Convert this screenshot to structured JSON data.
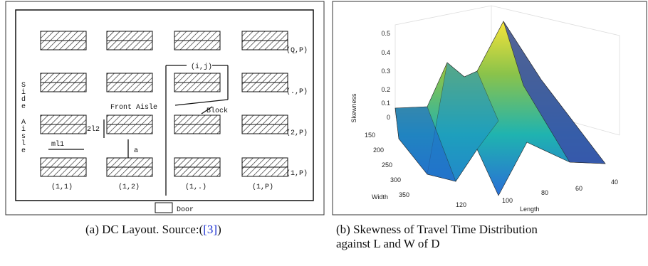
{
  "figure_a": {
    "labels": {
      "q_p": "(Q,P)",
      "dot_p": "(.,P)",
      "two_p": "(2,P)",
      "one_p": "(1,P)",
      "i_j": "(i,j)",
      "front_aisle": "Front Aisle",
      "block": "Block",
      "ml1": "ml1",
      "l2": "2l2",
      "a": "a",
      "door": "Door",
      "b11": "(1,1)",
      "b12": "(1,2)",
      "b1dot": "(1,.)",
      "b1p": "(1,P)"
    },
    "side_aisle": [
      "S",
      "i",
      "d",
      "e",
      "A",
      "i",
      "s",
      "l",
      "e"
    ],
    "caption": "(a) DC Layout. Source:(",
    "citation": "[3]",
    "caption_end": ")"
  },
  "figure_b": {
    "z_label": "Skewness",
    "x_label": "Length",
    "y_label": "Width",
    "z_ticks": [
      "0.5",
      "0.4",
      "0.3",
      "0.2",
      "0.1",
      "0"
    ],
    "y_ticks": [
      "150",
      "200",
      "250",
      "300",
      "350"
    ],
    "x_ticks": [
      "120",
      "100",
      "80",
      "60",
      "40"
    ],
    "caption_line1": "(b) Skewness of Travel Time Distribution",
    "caption_line2": "against L and W of D"
  }
}
